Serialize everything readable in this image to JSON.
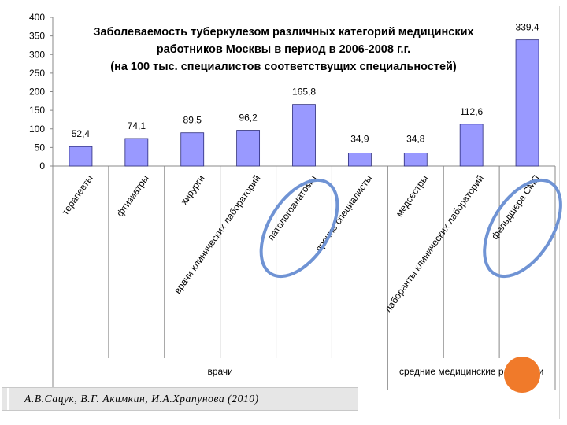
{
  "chart_data": {
    "type": "bar",
    "title_lines": [
      "Заболеваемость туберкулезом различных категорий медицинских",
      "работников Москвы в период в 2006-2008 г.г.",
      "(на 100 тыс. специалистов соответствущих специальностей)"
    ],
    "categories": [
      "терапевты",
      "фтизиатры",
      "хирурги",
      "врачи клинических лабораторий",
      "патологоанатомы",
      "прочие специалисты",
      "медсестры",
      "лаборанты клинических лабораторий",
      "фельдшера СМП"
    ],
    "values": [
      52.4,
      74.1,
      89.5,
      96.2,
      165.8,
      34.9,
      34.8,
      112.6,
      339.4
    ],
    "value_labels": [
      "52,4",
      "74,1",
      "89,5",
      "96,2",
      "165,8",
      "34,9",
      "34,8",
      "112,6",
      "339,4"
    ],
    "ylim": [
      0,
      400
    ],
    "yticks": [
      0,
      50,
      100,
      150,
      200,
      250,
      300,
      350,
      400
    ],
    "groups": [
      {
        "label": "врачи",
        "count": 6
      },
      {
        "label": "средние медицинские работники",
        "count": 3
      }
    ],
    "highlighted": [
      "патологоанатомы",
      "фельдшера СМП"
    ],
    "grid": false,
    "colors": {
      "bar": "#9999ff",
      "bar_edge": "#2b2b7a",
      "highlight": "#6f93d4",
      "axis": "#888888"
    }
  },
  "citation": "А.В.Сацук, В.Г. Акимкин, И.А.Храпунова (2010)",
  "accents": {
    "dot": "#f07a2a",
    "citation_bg": "#e6e6e6"
  }
}
